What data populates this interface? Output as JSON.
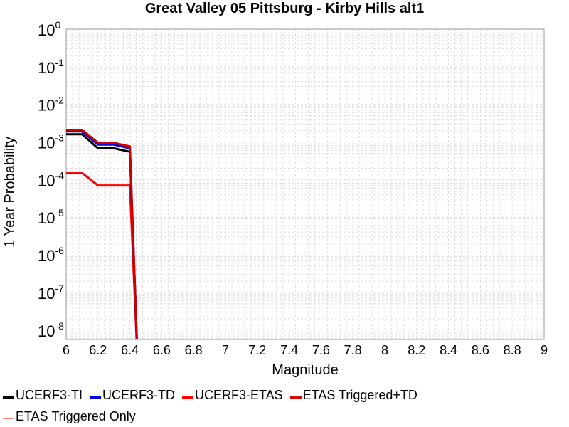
{
  "chart_data": {
    "type": "line",
    "title": "Great Valley 05 Pittsburg - Kirby Hills alt1",
    "xlabel": "Magnitude",
    "ylabel": "1 Year Probability",
    "xlim": [
      6,
      9
    ],
    "ylim_exponent": [
      -8.25,
      0
    ],
    "y_scale": "log",
    "grid": true,
    "legend_position": "bottom",
    "x_ticks": [
      "6",
      "6.2",
      "6.4",
      "6.6",
      "6.8",
      "7",
      "7.2",
      "7.4",
      "7.6",
      "7.8",
      "8",
      "8.2",
      "8.4",
      "8.6",
      "8.8",
      "9"
    ],
    "y_tick_exponents": [
      "0",
      "-1",
      "-2",
      "-3",
      "-4",
      "-5",
      "-6",
      "-7",
      "-8"
    ],
    "y_tick_base": "10",
    "series": [
      {
        "name": "UCERF3-TI",
        "color": "#000000",
        "x": [
          6.0,
          6.1,
          6.2,
          6.3,
          6.4,
          6.45
        ],
        "y": [
          0.0016,
          0.0016,
          0.00068,
          0.00068,
          0.00055,
          1e-09
        ]
      },
      {
        "name": "UCERF3-TD",
        "color": "#0000dd",
        "x": [
          6.0,
          6.1,
          6.2,
          6.3,
          6.4,
          6.45
        ],
        "y": [
          0.0019,
          0.0019,
          0.00085,
          0.00085,
          0.00068,
          1e-09
        ]
      },
      {
        "name": "UCERF3-ETAS",
        "color": "#ff0000",
        "x": [
          6.0,
          6.1,
          6.2,
          6.3,
          6.4,
          6.45
        ],
        "y": [
          0.00015,
          0.00015,
          7e-05,
          7e-05,
          7e-05,
          1e-09
        ]
      },
      {
        "name": "ETAS Triggered+TD",
        "color": "#cc0000",
        "x": [
          6.0,
          6.1,
          6.2,
          6.3,
          6.4,
          6.45
        ],
        "y": [
          0.0021,
          0.0021,
          0.00095,
          0.00095,
          0.00076,
          1e-09
        ]
      },
      {
        "name": "ETAS Triggered Only",
        "color": "#ff8080",
        "x": [],
        "y": []
      }
    ]
  }
}
